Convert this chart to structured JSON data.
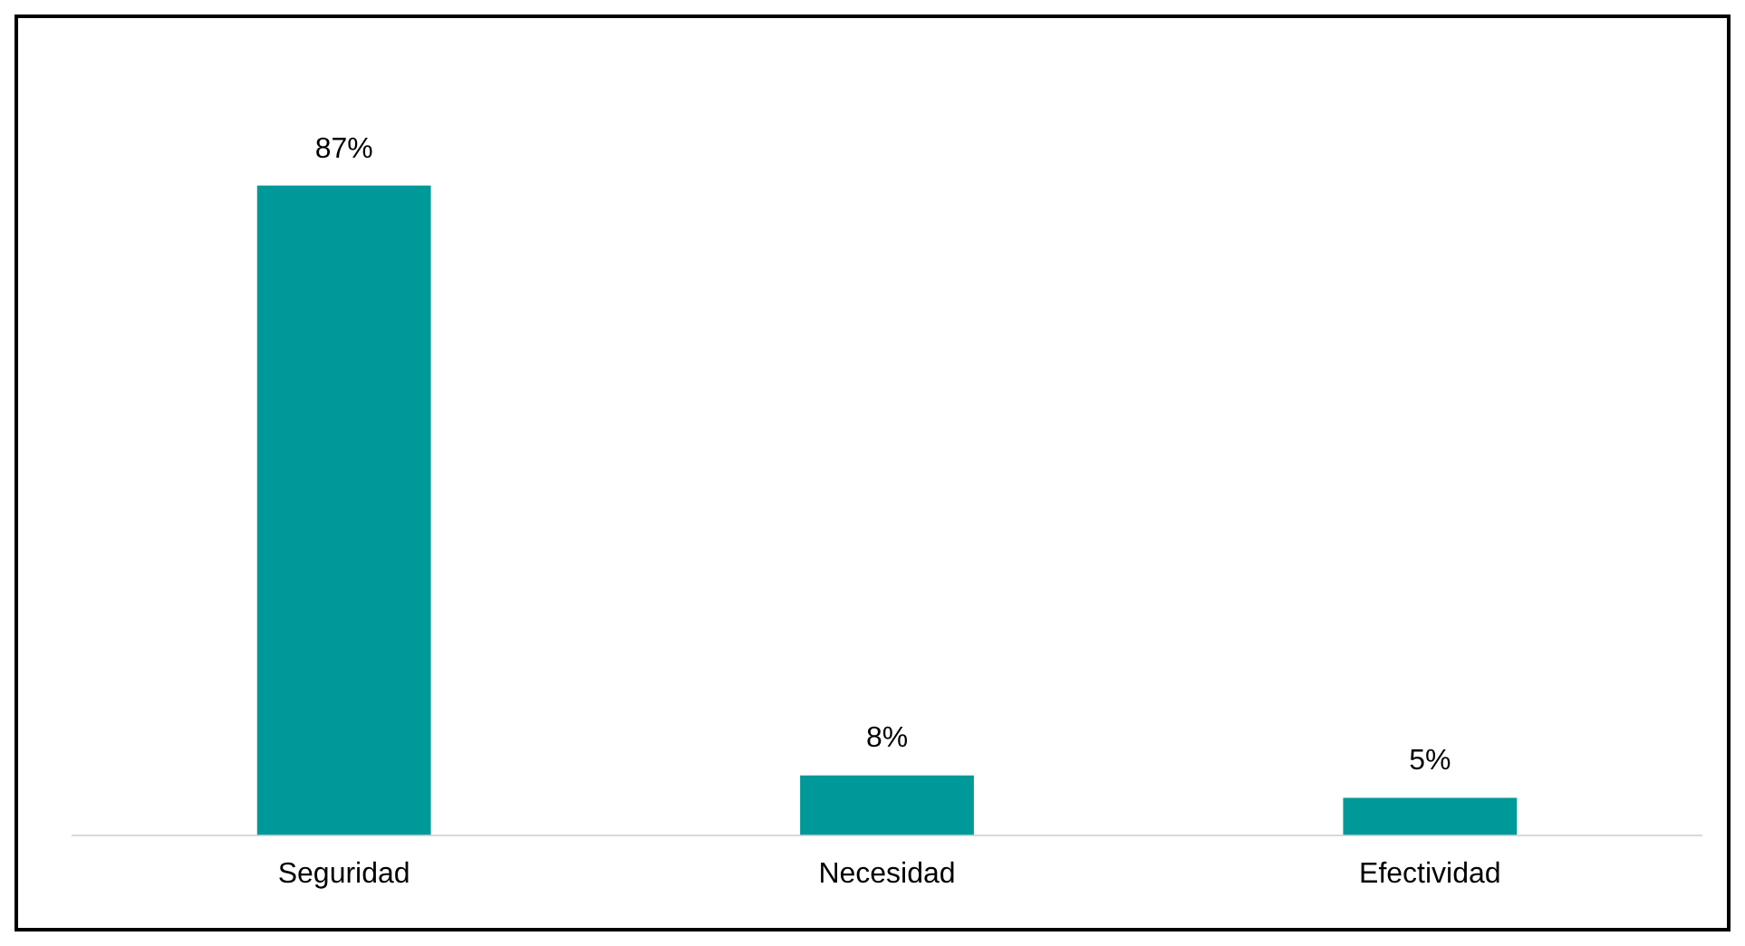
{
  "chart_data": {
    "type": "bar",
    "categories": [
      "Seguridad",
      "Necesidad",
      "Efectividad"
    ],
    "values": [
      87,
      8,
      5
    ],
    "value_labels": [
      "87%",
      "8%",
      "5%"
    ],
    "color": "#009999",
    "grid": false,
    "legend": false
  }
}
